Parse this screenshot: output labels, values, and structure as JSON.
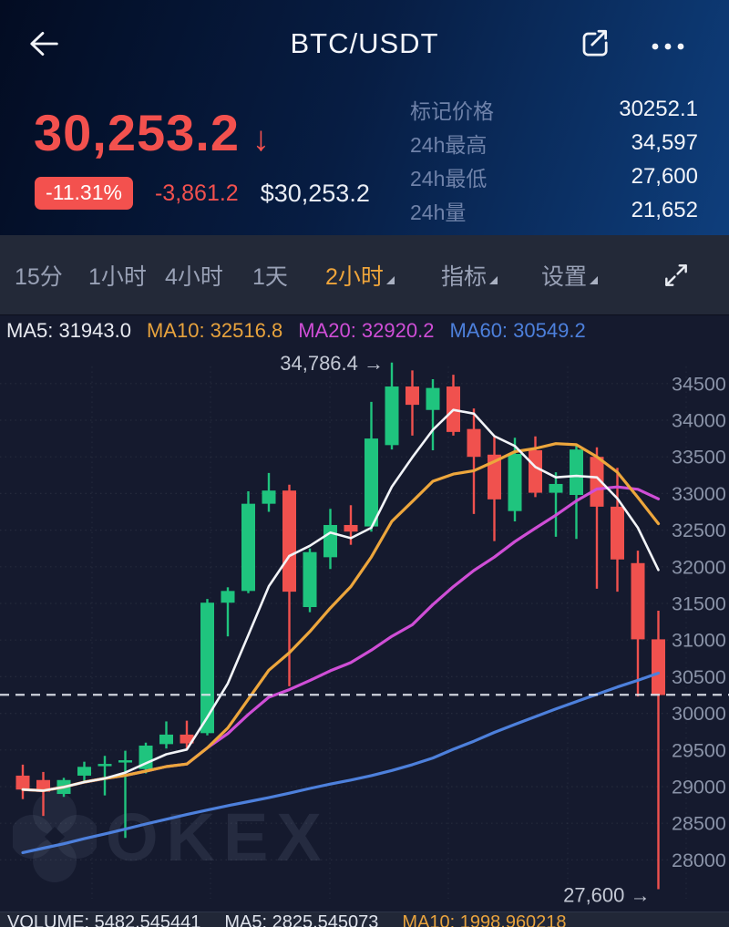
{
  "header": {
    "title": "BTC/USDT",
    "icons": [
      "back-arrow-icon",
      "share-icon",
      "more-dots-icon"
    ]
  },
  "price_panel": {
    "last_price": "30,253.2",
    "direction_arrow": "↓",
    "change_percent": "-11.31%",
    "change_abs": "-3,861.2",
    "fiat_value": "$30,253.2",
    "stats": [
      {
        "label": "标记价格",
        "value": "30252.1"
      },
      {
        "label": "24h最高",
        "value": "34,597"
      },
      {
        "label": "24h最低",
        "value": "27,600"
      },
      {
        "label": "24h量",
        "value": "21,652"
      }
    ]
  },
  "toolbar": {
    "items": [
      {
        "label": "15分",
        "active": false,
        "dropdown": false
      },
      {
        "label": "1小时",
        "active": false,
        "dropdown": false
      },
      {
        "label": "4小时",
        "active": false,
        "dropdown": false
      },
      {
        "label": "1天",
        "active": false,
        "dropdown": false
      },
      {
        "label": "2小时",
        "active": true,
        "dropdown": true
      },
      {
        "label": "指标",
        "active": false,
        "dropdown": true
      },
      {
        "label": "设置",
        "active": false,
        "dropdown": true
      }
    ],
    "expand_icon": "fullscreen-expand-icon"
  },
  "ma_legend": [
    {
      "label": "MA5: 31943.0",
      "color": "#e9ebf1"
    },
    {
      "label": "MA10: 32516.8",
      "color": "#e8a33d"
    },
    {
      "label": "MA20: 32920.2",
      "color": "#cf4ed6"
    },
    {
      "label": "MA60: 30549.2",
      "color": "#4d80dc"
    }
  ],
  "chart_data": {
    "type": "candlestick",
    "interval": "2小时",
    "symbol": "BTC/USDT",
    "up_color": "#1fc47e",
    "down_color": "#f0514e",
    "y_axis": {
      "min": 28000,
      "max": 34500,
      "step": 500
    },
    "current_price": 30253.2,
    "annotations": [
      {
        "text": "34,786.4 →",
        "price": 34786.4,
        "at_candle": 18,
        "position": "high"
      },
      {
        "text": "27,600 →",
        "price": 27600,
        "at_candle": 31,
        "position": "low"
      }
    ],
    "candles_ohlc": [
      [
        29150,
        29300,
        28830,
        28960
      ],
      [
        29090,
        29200,
        28600,
        28930
      ],
      [
        28900,
        29120,
        28860,
        29090
      ],
      [
        29150,
        29340,
        29080,
        29270
      ],
      [
        29280,
        29420,
        28880,
        29310
      ],
      [
        29330,
        29490,
        28300,
        29360
      ],
      [
        29240,
        29600,
        29180,
        29560
      ],
      [
        29580,
        29890,
        29520,
        29710
      ],
      [
        29710,
        29900,
        29500,
        29590
      ],
      [
        29730,
        31560,
        29700,
        31510
      ],
      [
        31510,
        31720,
        31050,
        31670
      ],
      [
        31670,
        33030,
        31640,
        32860
      ],
      [
        32860,
        33280,
        32750,
        33040
      ],
      [
        33040,
        33120,
        30370,
        31660
      ],
      [
        31450,
        32250,
        31380,
        32200
      ],
      [
        32130,
        32790,
        31970,
        32570
      ],
      [
        32570,
        32840,
        32300,
        32480
      ],
      [
        32550,
        34250,
        32480,
        33750
      ],
      [
        33660,
        34786,
        33600,
        34460
      ],
      [
        34460,
        34680,
        33790,
        34210
      ],
      [
        34140,
        34560,
        33590,
        34440
      ],
      [
        34460,
        34620,
        33790,
        33840
      ],
      [
        33880,
        34160,
        32720,
        33500
      ],
      [
        33530,
        33770,
        32350,
        32920
      ],
      [
        32760,
        33760,
        32620,
        33540
      ],
      [
        33590,
        33780,
        32950,
        33010
      ],
      [
        33010,
        33290,
        32410,
        33130
      ],
      [
        32980,
        33650,
        32380,
        33600
      ],
      [
        33500,
        33630,
        31700,
        32820
      ],
      [
        32820,
        33350,
        31660,
        32100
      ],
      [
        32050,
        32220,
        30230,
        31010
      ],
      [
        31010,
        31400,
        27600,
        30250
      ]
    ],
    "ma60_values": [
      28100,
      28160,
      28220,
      28290,
      28355,
      28420,
      28490,
      28555,
      28620,
      28680,
      28740,
      28795,
      28850,
      28910,
      28975,
      29035,
      29090,
      29150,
      29220,
      29300,
      29390,
      29510,
      29620,
      29740,
      29850,
      29955,
      30060,
      30160,
      30260,
      30360,
      30450,
      30549
    ],
    "ma_colors": {
      "ma5": "#f2f4f8",
      "ma10": "#eda63c",
      "ma20": "#cf4ed6",
      "ma60": "#4d80dc"
    }
  },
  "volume_bar": {
    "items": [
      {
        "text": "VOLUME: 5482.545441",
        "color": "#dfe3ec"
      },
      {
        "text": "MA5: 2825.545073",
        "color": "#dfe3ec"
      },
      {
        "text": "MA10: 1998.960218",
        "color": "#e8a33d"
      }
    ]
  },
  "watermark": "OKEX",
  "colors": {
    "accent_red": "#f3514e",
    "accent_orange": "#efa53b",
    "panel_gradient_end": "#0e3e7c",
    "chart_bg": "#151a2e",
    "tabbar_bg": "#232938",
    "axis_text": "#8a93a8"
  }
}
